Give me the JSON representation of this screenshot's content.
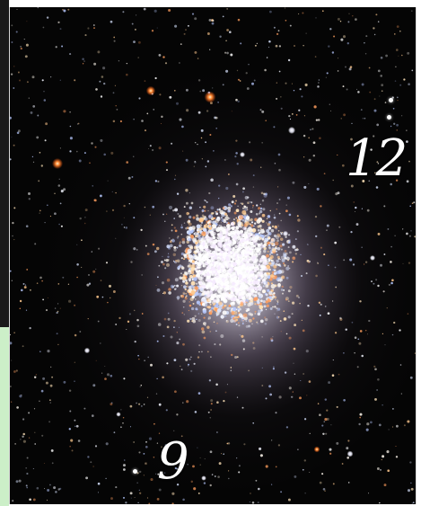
{
  "image": {
    "labels": {
      "upper": "12",
      "lower": "9"
    }
  },
  "colors": {
    "background": "#070707",
    "label": "#ffffff",
    "left_strip_top": "#1a1a1a",
    "left_strip_bottom": "#ccefc8"
  }
}
